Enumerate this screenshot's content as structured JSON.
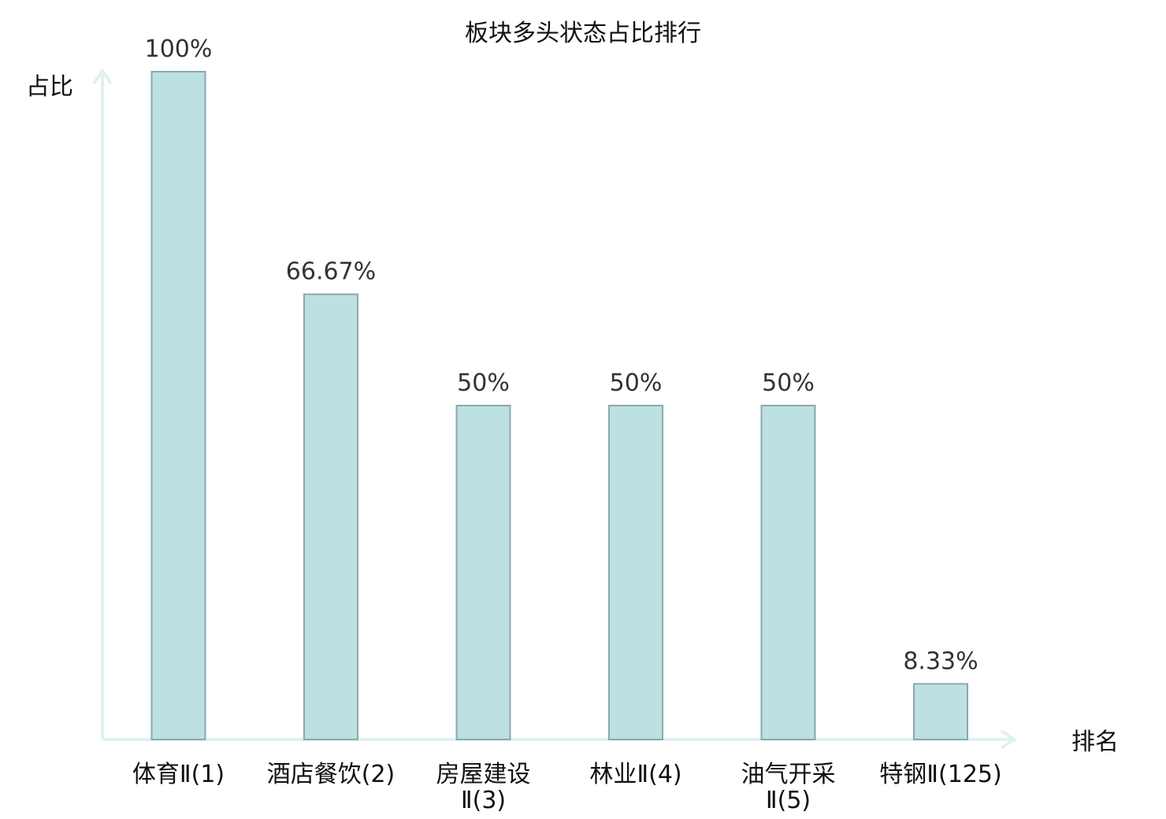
{
  "chart_data": {
    "type": "bar",
    "title": "板块多头状态占比排行",
    "ylabel": "占比",
    "xlabel": "排名",
    "ylim": [
      0,
      100
    ],
    "categories": [
      {
        "name": "体育",
        "suffix": "Ⅱ(1)",
        "highlight": false
      },
      {
        "name": "酒店餐饮",
        "suffix": "(2)",
        "highlight": false
      },
      {
        "name": "房屋建设",
        "suffix": "Ⅱ(3)",
        "highlight": false
      },
      {
        "name": "林业",
        "suffix": "Ⅱ(4)",
        "highlight": false
      },
      {
        "name": "油气开采",
        "suffix": "Ⅱ(5)",
        "highlight": false
      },
      {
        "name": "特钢",
        "suffix": "Ⅱ(125)",
        "highlight": true
      }
    ],
    "values": [
      100,
      66.67,
      50,
      50,
      50,
      8.33
    ],
    "value_labels": [
      "100%",
      "66.67%",
      "50%",
      "50%",
      "50%",
      "8.33%"
    ],
    "colors": {
      "bar_fill": "#bde0e3",
      "bar_stroke": "#8aa9ac",
      "axis": "#dff2ef",
      "highlight": "#dd1111",
      "text": "#111111",
      "value_text": "#333333"
    }
  }
}
